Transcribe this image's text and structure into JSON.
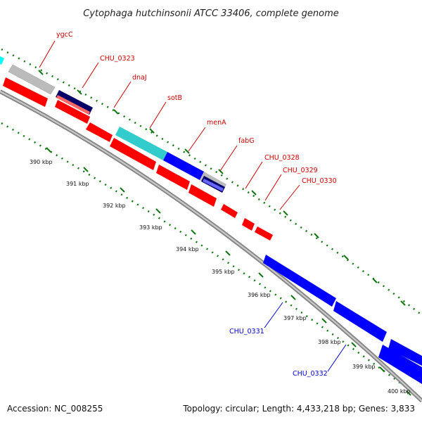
{
  "title": "Cytophaga hutchinsonii ATCC 33406, complete genome",
  "footer": {
    "accession": "Accession: NC_008255",
    "topology": "Topology: circular; Length: 4,433,218 bp; Genes: 3,833"
  },
  "colors": {
    "red": "#ff0000",
    "dark_red": "#b00000",
    "blue": "#0000ff",
    "navy": "#000066",
    "cyan": "#33cccc",
    "gray": "#bbbbbb",
    "tick_green": "#117711",
    "backbone": "#999999"
  },
  "tick_labels": [
    "390 kbp",
    "391 kbp",
    "392 kbp",
    "393 kbp",
    "394 kbp",
    "395 kbp",
    "396 kbp",
    "397 kbp",
    "398 kbp",
    "399 kbp",
    "400 kbp"
  ],
  "gene_labels": [
    {
      "text": "ygcC",
      "color": "#cc0000"
    },
    {
      "text": "CHU_0323",
      "color": "#cc0000"
    },
    {
      "text": "dnaJ",
      "color": "#cc0000"
    },
    {
      "text": "sotB",
      "color": "#cc0000"
    },
    {
      "text": "menA",
      "color": "#cc0000"
    },
    {
      "text": "fabG",
      "color": "#cc0000"
    },
    {
      "text": "CHU_0328",
      "color": "#cc0000"
    },
    {
      "text": "CHU_0329",
      "color": "#cc0000"
    },
    {
      "text": "CHU_0330",
      "color": "#cc0000"
    },
    {
      "text": "CHU_0331",
      "color": "#0000cc"
    },
    {
      "text": "CHU_0332",
      "color": "#0000cc"
    }
  ]
}
